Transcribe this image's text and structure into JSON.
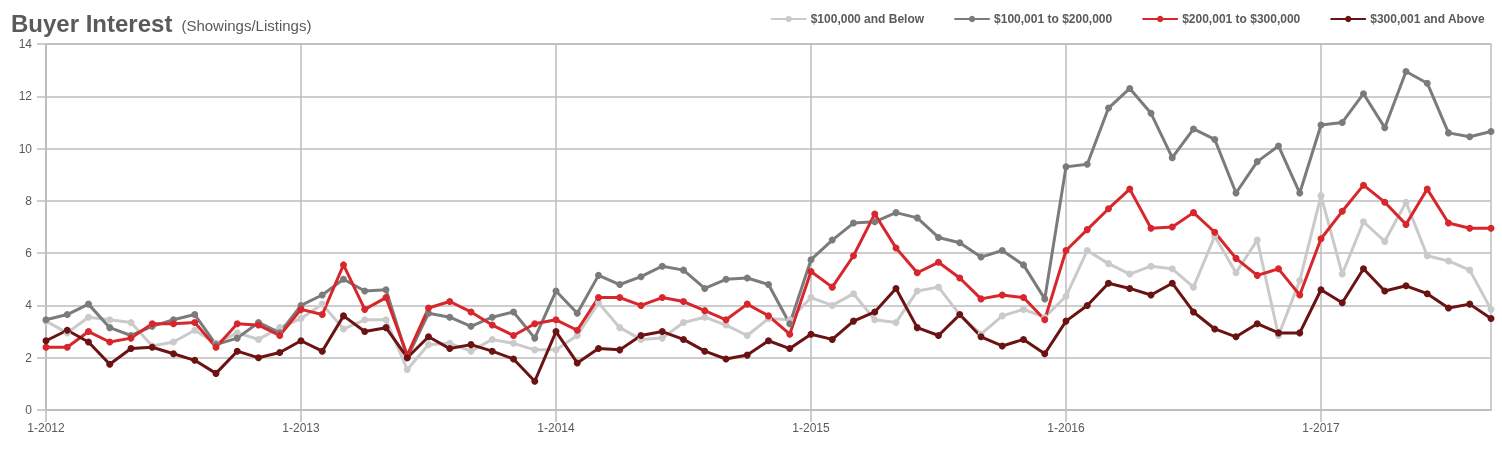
{
  "chart_data": {
    "type": "line",
    "title": "Buyer Interest",
    "subtitle": "(Showings/Listings)",
    "categories": [
      "1-2012",
      null,
      null,
      null,
      null,
      null,
      null,
      null,
      null,
      null,
      null,
      null,
      "1-2013",
      null,
      null,
      null,
      null,
      null,
      null,
      null,
      null,
      null,
      null,
      null,
      "1-2014",
      null,
      null,
      null,
      null,
      null,
      null,
      null,
      null,
      null,
      null,
      null,
      "1-2015",
      null,
      null,
      null,
      null,
      null,
      null,
      null,
      null,
      null,
      null,
      null,
      "1-2016",
      null,
      null,
      null,
      null,
      null,
      null,
      null,
      null,
      null,
      null,
      null,
      "1-2017",
      null,
      null,
      null,
      null,
      null,
      null,
      null,
      null
    ],
    "series": [
      {
        "name": "$100,000 and Below",
        "color": "#cacaca",
        "values": [
          3.4,
          2.95,
          3.55,
          3.45,
          3.35,
          2.45,
          2.6,
          3.05,
          2.55,
          2.95,
          2.7,
          3.15,
          3.5,
          4.05,
          3.1,
          3.45,
          3.45,
          1.55,
          2.5,
          2.55,
          2.25,
          2.7,
          2.55,
          2.3,
          2.3,
          2.85,
          4.1,
          3.15,
          2.7,
          2.75,
          3.35,
          3.55,
          3.25,
          2.85,
          3.5,
          3.45,
          4.3,
          4.0,
          4.45,
          3.45,
          3.35,
          4.55,
          4.7,
          3.65,
          2.9,
          3.6,
          3.85,
          3.55,
          4.35,
          6.1,
          5.6,
          5.2,
          5.5,
          5.4,
          4.7,
          6.65,
          5.25,
          6.5,
          2.85,
          4.95,
          8.2,
          5.2,
          7.2,
          6.45,
          7.95,
          5.9,
          5.7,
          5.35,
          3.85
        ]
      },
      {
        "name": "$100,001 to $200,000",
        "color": "#7b7b7b",
        "values": [
          3.45,
          3.65,
          4.05,
          3.15,
          2.85,
          3.2,
          3.45,
          3.65,
          2.5,
          2.75,
          3.35,
          2.95,
          4.0,
          4.4,
          5.0,
          4.55,
          4.6,
          2.0,
          3.7,
          3.55,
          3.2,
          3.55,
          3.75,
          2.75,
          4.55,
          3.7,
          5.15,
          4.8,
          5.1,
          5.5,
          5.35,
          4.65,
          5.0,
          5.05,
          4.8,
          3.3,
          5.75,
          6.5,
          7.15,
          7.2,
          7.55,
          7.35,
          6.6,
          6.4,
          5.85,
          6.1,
          5.55,
          4.25,
          9.3,
          9.4,
          11.55,
          12.3,
          11.35,
          9.65,
          10.75,
          10.35,
          8.3,
          9.5,
          10.1,
          8.3,
          10.9,
          11.0,
          12.1,
          10.8,
          12.95,
          12.5,
          10.6,
          10.45,
          10.65
        ]
      },
      {
        "name": "$200,001 to $300,000",
        "color": "#d7262c",
        "values": [
          2.4,
          2.4,
          3.0,
          2.6,
          2.75,
          3.3,
          3.3,
          3.35,
          2.4,
          3.3,
          3.25,
          2.85,
          3.85,
          3.65,
          5.55,
          3.85,
          4.3,
          2.1,
          3.9,
          4.15,
          3.75,
          3.25,
          2.85,
          3.3,
          3.45,
          3.05,
          4.3,
          4.3,
          4.0,
          4.3,
          4.15,
          3.8,
          3.45,
          4.05,
          3.6,
          2.9,
          5.3,
          4.7,
          5.9,
          7.5,
          6.2,
          5.25,
          5.65,
          5.05,
          4.25,
          4.4,
          4.3,
          3.45,
          6.1,
          6.9,
          7.7,
          8.45,
          6.95,
          7.0,
          7.55,
          6.8,
          5.8,
          5.15,
          5.4,
          4.4,
          6.55,
          7.6,
          8.6,
          7.95,
          7.1,
          8.45,
          7.15,
          6.95,
          6.95
        ]
      },
      {
        "name": "$300,001 and Above",
        "color": "#6b1213",
        "values": [
          2.65,
          3.05,
          2.6,
          1.75,
          2.35,
          2.4,
          2.15,
          1.9,
          1.4,
          2.25,
          2.0,
          2.2,
          2.65,
          2.25,
          3.6,
          3.0,
          3.15,
          2.0,
          2.8,
          2.35,
          2.5,
          2.25,
          1.95,
          1.1,
          3.0,
          1.8,
          2.35,
          2.3,
          2.85,
          3.0,
          2.7,
          2.25,
          1.95,
          2.1,
          2.65,
          2.35,
          2.9,
          2.7,
          3.4,
          3.75,
          4.65,
          3.15,
          2.85,
          3.65,
          2.8,
          2.45,
          2.7,
          2.15,
          3.4,
          4.0,
          4.85,
          4.65,
          4.4,
          4.85,
          3.75,
          3.1,
          2.8,
          3.3,
          2.95,
          2.95,
          4.6,
          4.1,
          5.4,
          4.55,
          4.75,
          4.45,
          3.9,
          4.05,
          3.5
        ]
      }
    ],
    "ylim": [
      0,
      14
    ],
    "yticks": [
      0,
      2,
      4,
      6,
      8,
      10,
      12,
      14
    ],
    "grid": true,
    "legend": "top right",
    "marker": "circle",
    "line_style": "solid"
  }
}
